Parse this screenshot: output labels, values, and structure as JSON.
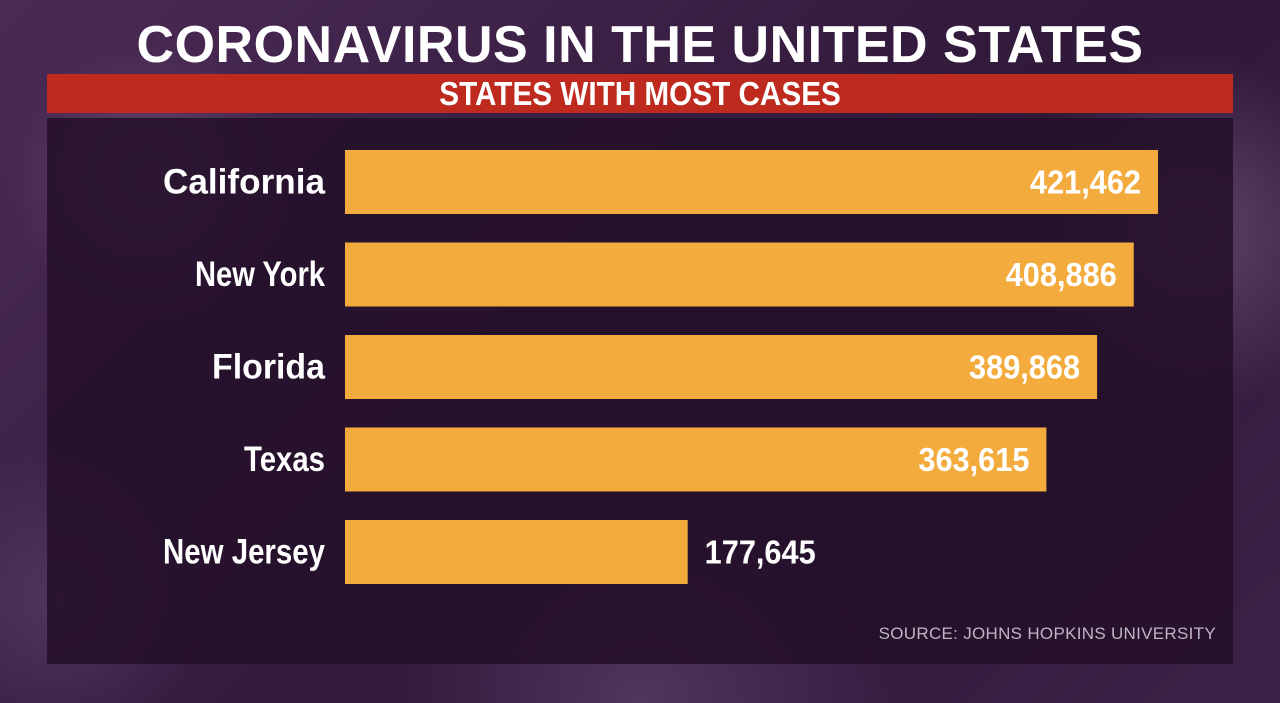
{
  "title": "CORONAVIRUS IN THE UNITED STATES",
  "subtitle": "STATES WITH MOST CASES",
  "source": "SOURCE: JOHNS HOPKINS UNIVERSITY",
  "colors": {
    "bar": "#f2ab3c",
    "banner": "#be2a1e",
    "text": "#ffffff"
  },
  "chart_data": {
    "type": "bar",
    "orientation": "horizontal",
    "title": "CORONAVIRUS IN THE UNITED STATES",
    "subtitle": "STATES WITH MOST CASES",
    "categories": [
      "California",
      "New York",
      "Florida",
      "Texas",
      "New Jersey"
    ],
    "values": [
      421462,
      408886,
      389868,
      363615,
      177645
    ],
    "value_labels": [
      "421,462",
      "408,886",
      "389,868",
      "363,615",
      "177,645"
    ],
    "xlabel": "",
    "ylabel": "",
    "grid": false,
    "legend": "none"
  }
}
